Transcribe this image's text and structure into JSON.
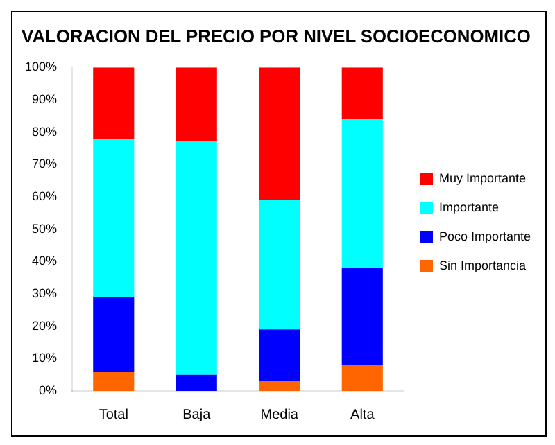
{
  "chart_data": {
    "type": "bar",
    "title": "VALORACION DEL PRECIO POR NIVEL SOCIOECONOMICO",
    "categories": [
      "Total",
      "Baja",
      "Media",
      "Alta"
    ],
    "stacked": true,
    "legend": "right",
    "grid": false,
    "series": [
      {
        "name": "Sin Importancia",
        "color": "#ff6600",
        "values": [
          6,
          0,
          3,
          8
        ]
      },
      {
        "name": "Poco Importante",
        "color": "#0000ff",
        "values": [
          23,
          5,
          16,
          30
        ]
      },
      {
        "name": "Importante",
        "color": "#00ffff",
        "values": [
          49,
          72,
          40,
          46
        ]
      },
      {
        "name": "Muy Importante",
        "color": "#ff0000",
        "values": [
          22,
          23,
          41,
          16
        ]
      }
    ],
    "ylim": [
      0,
      100
    ],
    "yticks": [
      {
        "value": 0,
        "label": "0%"
      },
      {
        "value": 10,
        "label": "10%"
      },
      {
        "value": 20,
        "label": "20%"
      },
      {
        "value": 30,
        "label": "30%"
      },
      {
        "value": 40,
        "label": "40%"
      },
      {
        "value": 50,
        "label": "50%"
      },
      {
        "value": 60,
        "label": "60%"
      },
      {
        "value": 70,
        "label": "70%"
      },
      {
        "value": 80,
        "label": "80%"
      },
      {
        "value": 90,
        "label": "90%"
      },
      {
        "value": 100,
        "label": "100%"
      }
    ]
  }
}
